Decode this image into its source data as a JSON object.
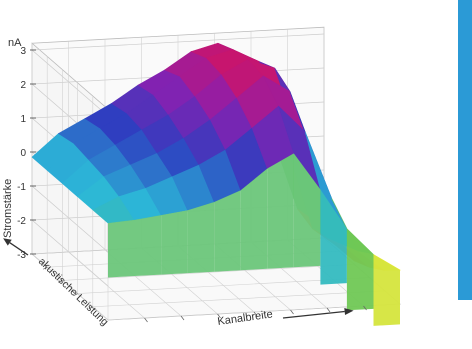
{
  "chart_data": {
    "type": "surface3d",
    "ylabel": "Stromstärke",
    "yunit": "nA",
    "xlabel": "Kanalbreite",
    "zlabel": "akustische Leistung",
    "zticks": [
      "-3",
      "-2",
      "-1",
      "0",
      "1",
      "2",
      "3"
    ],
    "zlim": [
      -3,
      3.2
    ],
    "grid": true,
    "colormap": [
      "#ff2a1a",
      "#f7ee35",
      "#56c15b",
      "#2cb8d8",
      "#2d3fc0",
      "#8a1fb0",
      "#d6135e"
    ],
    "surface": {
      "rows_acoustic_power": 6,
      "cols_channel_width": 12,
      "values": [
        [
          -0.15,
          -0.1,
          0.0,
          0.1,
          0.3,
          0.6,
          1.2,
          1.6,
          0.5,
          -0.7,
          -1.5,
          -2.0
        ],
        [
          -0.15,
          0.2,
          0.4,
          0.7,
          1.0,
          1.4,
          2.0,
          2.6,
          1.8,
          -0.2,
          -1.8,
          -2.4
        ],
        [
          -0.15,
          0.4,
          0.7,
          1.0,
          1.4,
          1.9,
          2.5,
          3.1,
          2.6,
          0.4,
          -2.0,
          -2.7
        ],
        [
          -0.15,
          0.5,
          0.9,
          1.3,
          1.7,
          2.2,
          2.8,
          3.2,
          2.9,
          0.6,
          -2.2,
          -2.9
        ],
        [
          -0.15,
          0.6,
          1.0,
          1.4,
          1.9,
          2.4,
          2.9,
          3.1,
          2.7,
          0.3,
          -2.3,
          -2.9
        ],
        [
          -0.15,
          0.5,
          0.9,
          1.3,
          1.8,
          2.2,
          2.7,
          2.9,
          2.5,
          0.2,
          -2.1,
          -2.7
        ]
      ]
    }
  },
  "side_strip_color": "#2b9ad6"
}
